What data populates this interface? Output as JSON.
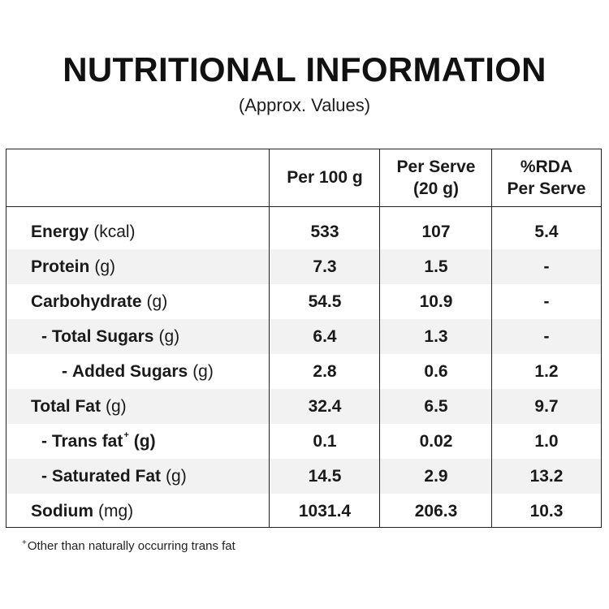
{
  "title": "NUTRITIONAL INFORMATION",
  "subtitle": "(Approx. Values)",
  "columns": [
    "",
    "Per 100 g",
    "Per Serve\n(20 g)",
    "%RDA\nPer Serve"
  ],
  "rows": [
    {
      "prefix": "",
      "name": "Energy",
      "unit": "(kcal)",
      "values": [
        "533",
        "107",
        "5.4"
      ]
    },
    {
      "prefix": "",
      "name": "Protein",
      "unit": "(g)",
      "values": [
        "7.3",
        "1.5",
        "-"
      ]
    },
    {
      "prefix": "",
      "name": "Carbohydrate",
      "unit": "(g)",
      "values": [
        "54.5",
        "10.9",
        "-"
      ]
    },
    {
      "prefix": "- ",
      "name": "Total Sugars",
      "unit": "(g)",
      "values": [
        "6.4",
        "1.3",
        "-"
      ]
    },
    {
      "prefix": "- ",
      "name": "Added Sugars",
      "unit": "(g)",
      "values": [
        "2.8",
        "0.6",
        "1.2"
      ]
    },
    {
      "prefix": "",
      "name": "Total Fat",
      "unit": "(g)",
      "values": [
        "32.4",
        "6.5",
        "9.7"
      ]
    },
    {
      "prefix": "- ",
      "name": "Trans fat",
      "marker": "+",
      "unit": "(g)",
      "values": [
        "0.1",
        "0.02",
        "1.0"
      ]
    },
    {
      "prefix": "- ",
      "name": "Saturated Fat",
      "unit": "(g)",
      "values": [
        "14.5",
        "2.9",
        "13.2"
      ]
    },
    {
      "prefix": "",
      "name": "Sodium",
      "unit": "(mg)",
      "values": [
        "1031.4",
        "206.3",
        "10.3"
      ]
    }
  ],
  "footnote": {
    "marker": "+",
    "text": "Other than naturally occurring trans fat"
  },
  "colors": {
    "row_shading": "#f2f2f2",
    "border": "#222222",
    "text": "#1a1a1a"
  }
}
